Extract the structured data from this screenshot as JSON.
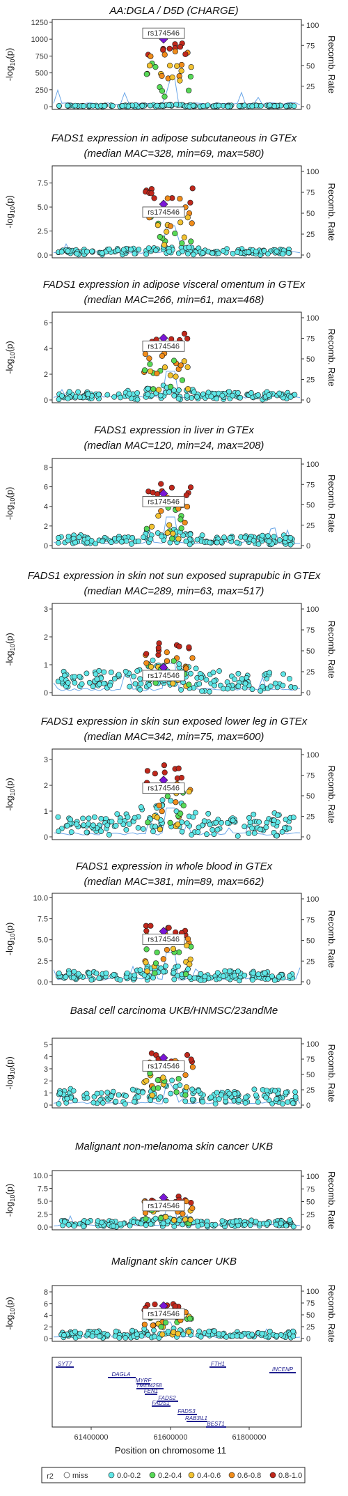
{
  "colors": {
    "miss": "#ffffff",
    "r2_0.0-0.2": "#5ee6e6",
    "r2_0.2-0.4": "#57d957",
    "r2_0.4-0.6": "#f2c230",
    "r2_0.6-0.8": "#f08c1a",
    "r2_0.8-1.0": "#c0281c",
    "lead": "#7a16d6",
    "recomb": "#6aa6e8",
    "gene": "#1f1f8f"
  },
  "lead_snp": "rs174546",
  "right_axis_label": "Recomb. Rate",
  "right_ticks": [
    "0",
    "25",
    "50",
    "75",
    "100"
  ],
  "left_axis_label": "-log10(p)",
  "left_axis_label_main": "-log",
  "left_axis_label_sub": "10",
  "left_axis_label_tail": "(p)",
  "x_axis_label": "Position on chromosome 11",
  "x_ticks": [
    "61400000",
    "61600000",
    "61800000"
  ],
  "legend": {
    "title": "r2",
    "items": [
      "miss",
      "0.0-0.2",
      "0.2-0.4",
      "0.4-0.6",
      "0.6-0.8",
      "0.8-1.0"
    ]
  },
  "genes": [
    "SYT7",
    "DAGLA",
    "MYRF",
    "TMEM258",
    "FEN1",
    "FADS2",
    "FADS1",
    "FADS3",
    "RAB3IL1",
    "BEST1",
    "FTH1",
    "INCENP"
  ],
  "chart_data": [
    {
      "type": "scatter",
      "title": "AA:DGLA / D5D (CHARGE)",
      "subtitle": "",
      "ylim": [
        0,
        1250
      ],
      "yticks": [
        "0",
        "250",
        "500",
        "750",
        "1000",
        "1250"
      ],
      "lead_value": 1000,
      "peak_top": 1000,
      "background": 15
    },
    {
      "type": "scatter",
      "title": "FADS1 expression in adipose subcutaneous in GTEx",
      "subtitle": "(median MAC=328, min=69, max=580)",
      "ylim": [
        0,
        9
      ],
      "yticks": [
        "0.0",
        "2.5",
        "5.0",
        "7.5"
      ],
      "lead_value": 5.3,
      "peak_top": 7.0,
      "background": 0.5
    },
    {
      "type": "scatter",
      "title": "FADS1 expression in adipose visceral omentum in GTEx",
      "subtitle": "(median MAC=266, min=61, max=468)",
      "ylim": [
        0,
        6.6
      ],
      "yticks": [
        "0",
        "2",
        "4",
        "6"
      ],
      "lead_value": 4.8,
      "peak_top": 5.2,
      "background": 0.5
    },
    {
      "type": "scatter",
      "title": "FADS1 expression in liver in GTEx",
      "subtitle": "(median MAC=120, min=24, max=208)",
      "ylim": [
        0,
        8.6
      ],
      "yticks": [
        "0",
        "2",
        "4",
        "6",
        "8"
      ],
      "lead_value": 5.3,
      "peak_top": 6.4,
      "background": 0.8
    },
    {
      "type": "scatter",
      "title": "FADS1 expression in skin not sun exposed suprapubic in GTEx",
      "subtitle": "(median MAC=289, min=63, max=517)",
      "ylim": [
        0,
        3.1
      ],
      "yticks": [
        "0",
        "1",
        "2",
        "3"
      ],
      "lead_value": 0.9,
      "peak_top": 1.8,
      "background": 0.6
    },
    {
      "type": "scatter",
      "title": "FADS1 expression in skin sun exposed lower leg in GTEx",
      "subtitle": "(median MAC=342, min=75, max=600)",
      "ylim": [
        0,
        3.3
      ],
      "yticks": [
        "0",
        "1",
        "2",
        "3"
      ],
      "lead_value": 2.2,
      "peak_top": 2.8,
      "background": 0.7
    },
    {
      "type": "scatter",
      "title": "FADS1 expression in whole blood in GTEx",
      "subtitle": "(median MAC=381, min=89, max=662)",
      "ylim": [
        0,
        10.2
      ],
      "yticks": [
        "0.0",
        "2.5",
        "5.0",
        "7.5",
        "10.0"
      ],
      "lead_value": 6.0,
      "peak_top": 7.0,
      "background": 1.0
    },
    {
      "type": "scatter",
      "title": "Basal cell carcinoma UKB/HNMSC/23andMe",
      "subtitle": "",
      "ylim": [
        0,
        5.3
      ],
      "yticks": [
        "0",
        "1",
        "2",
        "3",
        "4",
        "5"
      ],
      "lead_value": 3.9,
      "peak_top": 4.3,
      "background": 1.0
    },
    {
      "type": "scatter",
      "title": "Malignant non-melanoma skin cancer UKB",
      "subtitle": "",
      "ylim": [
        0,
        10.4
      ],
      "yticks": [
        "0.0",
        "2.5",
        "5.0",
        "7.5",
        "10.0"
      ],
      "lead_value": 5.7,
      "peak_top": 6.0,
      "background": 1.0
    },
    {
      "type": "scatter",
      "title": "Malignant skin cancer UKB",
      "subtitle": "",
      "ylim": [
        0,
        8.6
      ],
      "yticks": [
        "0",
        "2",
        "4",
        "6",
        "8"
      ],
      "lead_value": 5.6,
      "peak_top": 6.0,
      "background": 1.0
    }
  ]
}
